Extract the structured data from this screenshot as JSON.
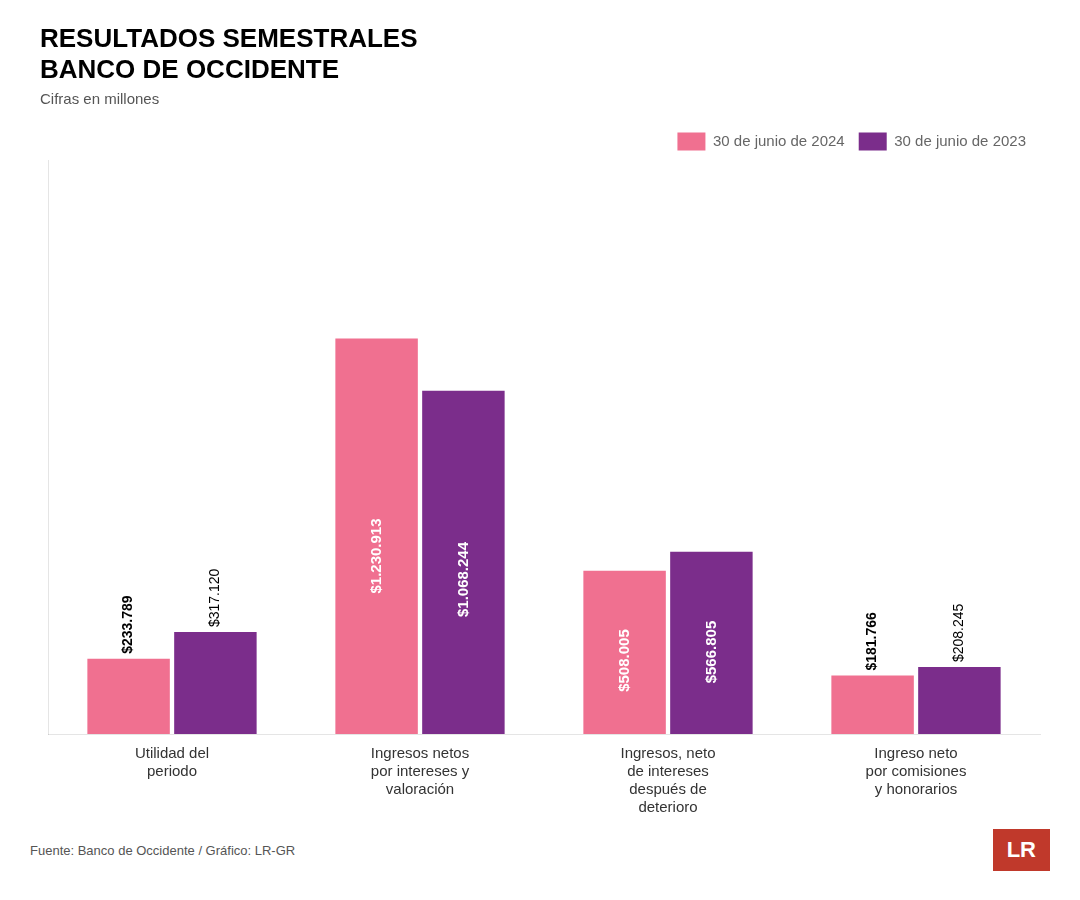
{
  "chart_data": {
    "type": "bar",
    "title": [
      "RESULTADOS SEMESTRALES",
      "BANCO DE OCCIDENTE"
    ],
    "subtitle": "Cifras en millones",
    "categories": [
      "Utilidad del\nperiodo",
      "Ingresos netos\npor intereses y\nvaloración",
      "Ingresos, neto\nde intereses\ndespués de\ndeterioro",
      "Ingreso neto\npor comisiones\ny honorarios"
    ],
    "series": [
      {
        "name": "30 de junio de 2024",
        "color": "#F07090",
        "values": [
          233789,
          1230913,
          508005,
          181766
        ],
        "value_labels": [
          "$233.789",
          "$1.230.913",
          "$508.005",
          "$181.766"
        ]
      },
      {
        "name": "30 de junio de 2023",
        "color": "#7B2D8B",
        "values": [
          317120,
          1068244,
          566805,
          208245
        ],
        "value_labels": [
          "$317.120",
          "$1.068.244",
          "$566.805",
          "$208.245"
        ]
      }
    ],
    "ylim": [
      0,
      1784823.85
    ],
    "tick_labels": "x",
    "grid": false,
    "legend": "upper right",
    "data_labels": true,
    "annotations": [
      "Fuente: Banco de Occidente / Gráfico: LR-GR",
      "LR"
    ]
  }
}
